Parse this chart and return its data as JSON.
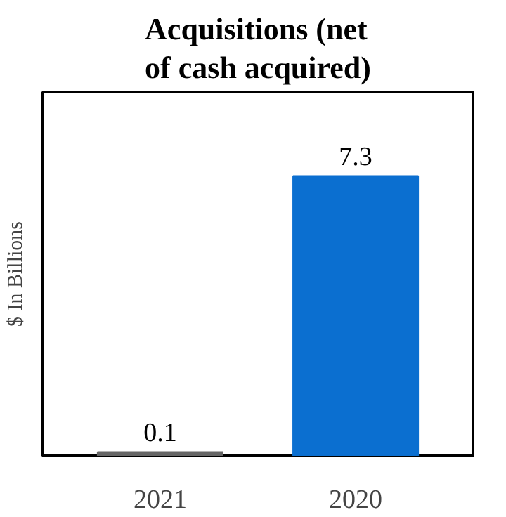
{
  "chart_data": {
    "type": "bar",
    "title": "Acquisitions (net of cash acquired)",
    "ylabel": "$ In Billions",
    "categories": [
      "2021",
      "2020"
    ],
    "values": [
      0.1,
      7.3
    ],
    "colors": [
      "#666666",
      "#0b6fd0"
    ],
    "data_labels": true,
    "grid": false
  }
}
